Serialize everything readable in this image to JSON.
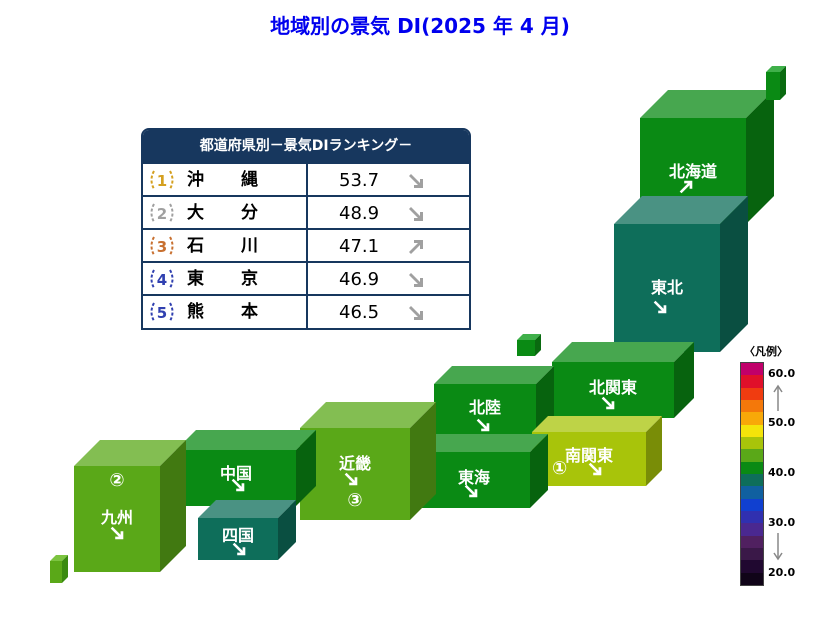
{
  "title": "地域別の景気 DI(2025 年 4 月)",
  "ranking": {
    "header": "都道府県別－景気DIランキング－",
    "rows": [
      {
        "rank": "1",
        "pref_a": "沖",
        "pref_b": "縄",
        "value": "53.7",
        "trend": "down",
        "badge_color": "#d4a020"
      },
      {
        "rank": "2",
        "pref_a": "大",
        "pref_b": "分",
        "value": "48.9",
        "trend": "down",
        "badge_color": "#a0a0a0"
      },
      {
        "rank": "3",
        "pref_a": "石",
        "pref_b": "川",
        "value": "47.1",
        "trend": "up",
        "badge_color": "#c87030"
      },
      {
        "rank": "4",
        "pref_a": "東",
        "pref_b": "京",
        "value": "46.9",
        "trend": "down",
        "badge_color": "#3040b0"
      },
      {
        "rank": "5",
        "pref_a": "熊",
        "pref_b": "本",
        "value": "46.5",
        "trend": "down",
        "badge_color": "#3040b0"
      }
    ]
  },
  "regions": [
    {
      "id": "hokkaido",
      "label": "北海道",
      "trend": "up",
      "color": "#0a8a14"
    },
    {
      "id": "tohoku",
      "label": "東北",
      "trend": "down",
      "color": "#0e6e5a"
    },
    {
      "id": "kitakanto",
      "label": "北関東",
      "trend": "down",
      "color": "#0a8a14"
    },
    {
      "id": "hokuriku",
      "label": "北陸",
      "trend": "down",
      "color": "#0a8a14"
    },
    {
      "id": "minamikanto",
      "label": "南関東",
      "trend": "down",
      "rank": "①",
      "color": "#a8c40a"
    },
    {
      "id": "tokai",
      "label": "東海",
      "trend": "down",
      "color": "#0a8a14"
    },
    {
      "id": "kinki",
      "label": "近畿",
      "trend": "down",
      "rank": "③",
      "color": "#5aa818"
    },
    {
      "id": "chugoku",
      "label": "中国",
      "trend": "down",
      "color": "#0a8a14"
    },
    {
      "id": "shikoku",
      "label": "四国",
      "trend": "down",
      "color": "#0e6e5a"
    },
    {
      "id": "kyushu",
      "label": "九州",
      "trend": "down",
      "rank": "②",
      "color": "#5aa818"
    }
  ],
  "legend": {
    "title": "〈凡例〉",
    "ticks": [
      "60.0",
      "50.0",
      "40.0",
      "30.0",
      "20.0"
    ],
    "colors": [
      "#c0006a",
      "#e0102a",
      "#f03c10",
      "#f4780a",
      "#f8a808",
      "#f4e40a",
      "#a8c40a",
      "#5aa818",
      "#0a8a14",
      "#0e6e5a",
      "#1060a0",
      "#1040d0",
      "#3030b0",
      "#4a2890",
      "#502060",
      "#3a1848",
      "#200830",
      "#100418"
    ]
  }
}
